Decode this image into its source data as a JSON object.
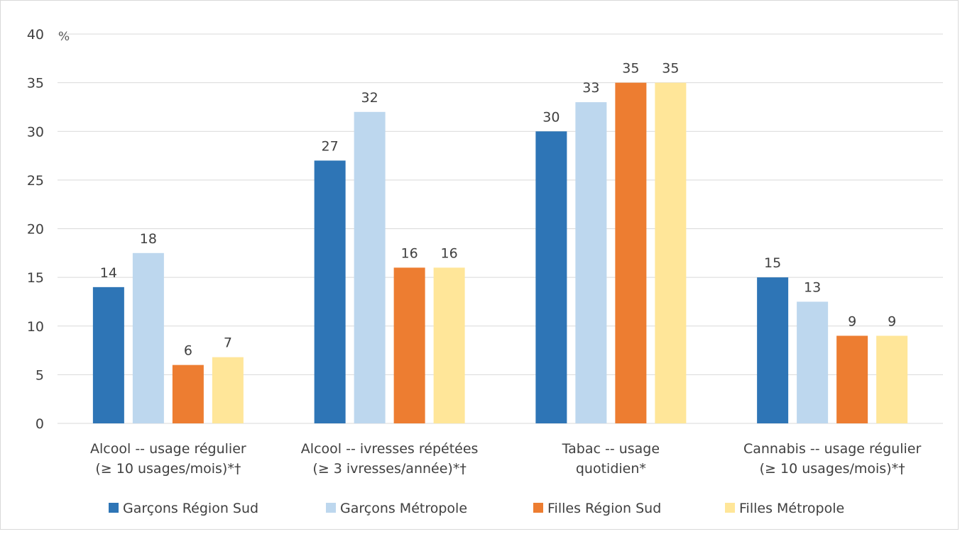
{
  "chart_data": {
    "type": "bar",
    "unit": "%",
    "categories": [
      [
        "Alcool -- usage régulier",
        "(≥ 10 usages/mois)*†"
      ],
      [
        "Alcool -- ivresses répétées",
        "(≥ 3 ivresses/année)*†"
      ],
      [
        "Tabac -- usage",
        "quotidien*"
      ],
      [
        "Cannabis -- usage régulier",
        "(≥ 10 usages/mois)*†"
      ]
    ],
    "series": [
      {
        "name": "Garçons Région Sud",
        "color": "#2e75b6",
        "values": [
          14,
          27,
          30,
          15
        ],
        "labels": [
          "14",
          "27",
          "30",
          "15"
        ]
      },
      {
        "name": "Garçons Métropole",
        "color": "#bdd7ee",
        "values": [
          17.5,
          32,
          33,
          12.5
        ],
        "labels": [
          "18",
          "32",
          "33",
          "13"
        ]
      },
      {
        "name": "Filles Région Sud",
        "color": "#ed7d31",
        "values": [
          6,
          16,
          35,
          9
        ],
        "labels": [
          "6",
          "16",
          "35",
          "9"
        ]
      },
      {
        "name": "Filles Métropole",
        "color": "#ffe699",
        "values": [
          6.8,
          16,
          35,
          9
        ],
        "labels": [
          "7",
          "16",
          "35",
          "9"
        ]
      }
    ],
    "yticks": [
      "0",
      "5",
      "10",
      "15",
      "20",
      "25",
      "30",
      "35",
      "40"
    ],
    "ylim": [
      0,
      40
    ],
    "grid": true,
    "gridColor": "#d9d9d9",
    "legend_position": "bottom"
  }
}
